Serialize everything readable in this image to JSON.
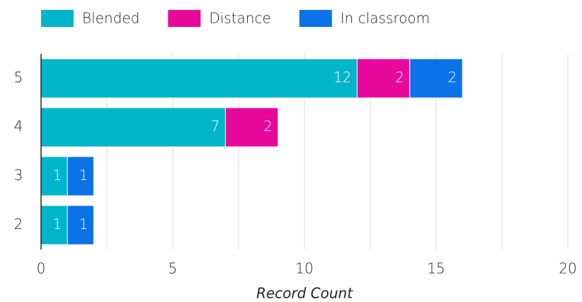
{
  "chart_data": {
    "type": "stacked_barh",
    "categories": [
      "5",
      "4",
      "3",
      "2"
    ],
    "series": [
      {
        "name": "Blended",
        "color": "#00b5c9",
        "values": [
          12,
          7,
          1,
          1
        ]
      },
      {
        "name": "Distance",
        "color": "#e8089a",
        "values": [
          2,
          2,
          null,
          null
        ]
      },
      {
        "name": "In classroom",
        "color": "#0b72e8",
        "values": [
          2,
          null,
          1,
          1
        ]
      }
    ],
    "xlim": [
      0,
      20
    ],
    "xticks": [
      0,
      5,
      10,
      15,
      20
    ],
    "minor_xticks": [
      2.5,
      7.5,
      12.5,
      17.5
    ],
    "xlabel": "Record Count",
    "grid": true,
    "legend": "top"
  }
}
